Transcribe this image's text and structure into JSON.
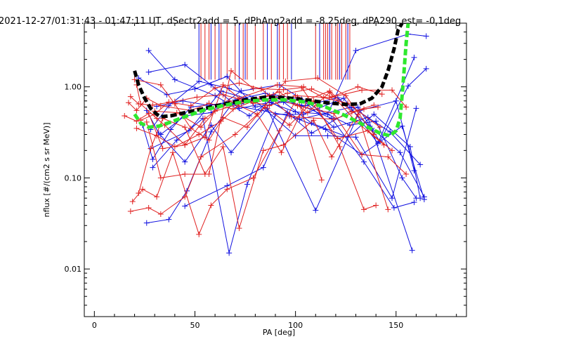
{
  "chart_data": {
    "type": "line",
    "title": "2021-12-27/01:31:43 - 01:47:11 UT, dSectr2add = 5, dPhAng2add = -8.25deg, dPA290_est=  -0.1deg",
    "xlabel": "PA [deg]",
    "ylabel": "nflux [#/(cm2 s sr MeV)]",
    "xlim": [
      -5,
      185
    ],
    "ylim": [
      0.003,
      5.0
    ],
    "yscale": "log",
    "x_ticks": [
      0,
      50,
      100,
      150
    ],
    "x_tick_labels": [
      "0",
      "50",
      "100",
      "150"
    ],
    "y_ticks": [
      0.01,
      0.1,
      1.0
    ],
    "y_tick_labels": [
      "0.01",
      "0.10",
      "1.00"
    ],
    "grid": false,
    "colors": {
      "red": "#e02020",
      "blue": "#1010e0",
      "green": "#2ee82e",
      "black": "#000000"
    },
    "fits": [
      {
        "color": "black",
        "x": [
          20,
          22,
          25,
          28,
          31,
          33,
          38,
          45,
          55,
          65,
          75,
          85,
          95,
          105,
          115,
          125,
          132,
          138,
          143,
          146,
          149,
          151,
          153
        ],
        "y": [
          1.5,
          1.05,
          0.75,
          0.58,
          0.5,
          0.47,
          0.48,
          0.52,
          0.58,
          0.65,
          0.72,
          0.77,
          0.76,
          0.72,
          0.67,
          0.64,
          0.65,
          0.75,
          1.0,
          1.5,
          2.6,
          4.2,
          5.0
        ]
      },
      {
        "color": "green",
        "x": [
          20,
          23,
          27,
          32,
          38,
          45,
          55,
          65,
          75,
          85,
          95,
          105,
          115,
          125,
          135,
          142,
          147,
          150,
          152,
          153,
          154,
          155,
          156
        ],
        "y": [
          0.5,
          0.4,
          0.36,
          0.37,
          0.41,
          0.47,
          0.56,
          0.63,
          0.69,
          0.72,
          0.72,
          0.68,
          0.6,
          0.48,
          0.37,
          0.31,
          0.29,
          0.33,
          0.45,
          0.8,
          1.5,
          3.0,
          5.0
        ]
      }
    ],
    "red_sector_lines_x": [
      53,
      55,
      57,
      60,
      63,
      66,
      70,
      74,
      76,
      80,
      84,
      88,
      92,
      94,
      96,
      110,
      112,
      114,
      115,
      116,
      118,
      120,
      121,
      123,
      125,
      127
    ],
    "blue_sector_lines_x": [
      52,
      58,
      62,
      72,
      75,
      86,
      91,
      98,
      112,
      117,
      122,
      126
    ],
    "series": [
      {
        "color": "blue",
        "points": [
          [
            27,
            2.5
          ],
          [
            40,
            1.2
          ],
          [
            60,
            0.8
          ],
          [
            77,
            0.48
          ],
          [
            88,
            0.72
          ],
          [
            105,
            0.62
          ],
          [
            121,
            0.76
          ],
          [
            138,
            0.35
          ],
          [
            152,
            0.19
          ],
          [
            164,
            0.062
          ]
        ]
      },
      {
        "color": "blue",
        "points": [
          [
            27,
            1.45
          ],
          [
            45,
            1.75
          ],
          [
            58,
            1.05
          ],
          [
            72,
            0.58
          ],
          [
            88,
            0.68
          ],
          [
            102,
            0.44
          ],
          [
            128,
            0.6
          ],
          [
            147,
            0.32
          ],
          [
            162,
            0.14
          ]
        ]
      },
      {
        "color": "blue",
        "points": [
          [
            22,
            1.25
          ],
          [
            36,
            0.82
          ],
          [
            50,
            0.95
          ],
          [
            66,
            1.3
          ],
          [
            80,
            0.6
          ],
          [
            94,
            0.68
          ],
          [
            108,
            0.4
          ],
          [
            126,
            0.28
          ],
          [
            139,
            0.5
          ],
          [
            157,
            0.22
          ],
          [
            162,
            0.06
          ]
        ]
      },
      {
        "color": "blue",
        "points": [
          [
            28,
            0.34
          ],
          [
            37,
            0.62
          ],
          [
            52,
            1.15
          ],
          [
            67,
            0.96
          ],
          [
            85,
            0.7
          ],
          [
            100,
            0.53
          ],
          [
            116,
            0.5
          ],
          [
            130,
            2.5
          ],
          [
            156,
            3.8
          ],
          [
            165,
            3.6
          ]
        ]
      },
      {
        "color": "blue",
        "points": [
          [
            33,
            0.3
          ],
          [
            45,
            0.48
          ],
          [
            58,
            0.52
          ],
          [
            73,
            0.9
          ],
          [
            92,
            1.05
          ],
          [
            112,
            0.55
          ],
          [
            127,
            0.38
          ],
          [
            140,
            0.42
          ],
          [
            153,
            0.1
          ],
          [
            160,
            0.06
          ]
        ]
      },
      {
        "color": "blue",
        "points": [
          [
            24,
            0.38
          ],
          [
            29,
            0.16
          ],
          [
            38,
            0.34
          ],
          [
            48,
            0.6
          ],
          [
            64,
            0.66
          ],
          [
            83,
            0.55
          ],
          [
            97,
            0.48
          ],
          [
            115,
            0.34
          ],
          [
            133,
            0.18
          ],
          [
            153,
            0.37
          ],
          [
            164,
            0.058
          ]
        ]
      },
      {
        "color": "blue",
        "points": [
          [
            26,
            0.032
          ],
          [
            37,
            0.035
          ],
          [
            46,
            0.072
          ],
          [
            58,
            0.32
          ],
          [
            70,
            0.72
          ],
          [
            85,
            0.85
          ],
          [
            103,
            0.62
          ],
          [
            118,
            0.45
          ],
          [
            134,
            0.15
          ],
          [
            149,
            0.047
          ],
          [
            159,
            0.054
          ]
        ]
      },
      {
        "color": "blue",
        "points": [
          [
            45,
            0.049
          ],
          [
            66,
            0.082
          ],
          [
            84,
            0.13
          ],
          [
            96,
            0.52
          ],
          [
            108,
            0.31
          ],
          [
            131,
            0.6
          ],
          [
            142,
            0.25
          ],
          [
            156,
            1.02
          ],
          [
            165,
            1.58
          ]
        ]
      },
      {
        "color": "blue",
        "points": [
          [
            26,
            0.55
          ],
          [
            32,
            0.31
          ],
          [
            45,
            0.15
          ],
          [
            58,
            0.38
          ],
          [
            68,
            0.19
          ],
          [
            86,
            0.58
          ],
          [
            110,
            0.044
          ],
          [
            132,
            0.55
          ],
          [
            150,
            0.7
          ],
          [
            159,
            0.12
          ]
        ]
      },
      {
        "color": "blue",
        "points": [
          [
            29,
            0.13
          ],
          [
            41,
            0.26
          ],
          [
            54,
            0.45
          ],
          [
            67,
            0.015
          ],
          [
            76,
            0.085
          ],
          [
            90,
            0.5
          ],
          [
            104,
            0.5
          ],
          [
            124,
            0.75
          ],
          [
            141,
            0.24
          ],
          [
            159,
            2.1
          ]
        ]
      },
      {
        "color": "blue",
        "points": [
          [
            31,
            0.61
          ],
          [
            44,
            0.7
          ],
          [
            56,
            0.63
          ],
          [
            73,
            0.65
          ],
          [
            89,
            0.82
          ],
          [
            103,
            0.73
          ],
          [
            119,
            0.36
          ],
          [
            136,
            0.46
          ],
          [
            158,
            0.016
          ]
        ]
      },
      {
        "color": "blue",
        "points": [
          [
            28,
            0.21
          ],
          [
            47,
            0.33
          ],
          [
            63,
            0.9
          ],
          [
            80,
            0.7
          ],
          [
            100,
            0.29
          ],
          [
            116,
            0.29
          ],
          [
            130,
            0.28
          ],
          [
            148,
            0.06
          ],
          [
            160,
            0.58
          ]
        ]
      },
      {
        "color": "red",
        "points": [
          [
            15,
            0.48
          ],
          [
            21,
            0.42
          ],
          [
            27,
            0.51
          ],
          [
            34,
            0.21
          ],
          [
            45,
            0.23
          ],
          [
            55,
            0.28
          ],
          [
            64,
            1.05
          ],
          [
            72,
            0.75
          ],
          [
            91,
            1.05
          ],
          [
            104,
            1.0
          ],
          [
            114,
            0.76
          ],
          [
            126,
            0.66
          ],
          [
            142,
            0.36
          ]
        ]
      },
      {
        "color": "red",
        "points": [
          [
            17,
            0.67
          ],
          [
            21,
            0.55
          ],
          [
            26,
            0.75
          ],
          [
            33,
            0.62
          ],
          [
            48,
            0.55
          ],
          [
            57,
            0.66
          ],
          [
            69,
            0.57
          ],
          [
            82,
            0.74
          ],
          [
            92,
            0.88
          ],
          [
            106,
            0.52
          ],
          [
            117,
            0.87
          ],
          [
            130,
            0.42
          ],
          [
            144,
            0.23
          ]
        ]
      },
      {
        "color": "red",
        "points": [
          [
            18,
            0.78
          ],
          [
            22,
            0.65
          ],
          [
            29,
            0.63
          ],
          [
            40,
            0.69
          ],
          [
            51,
            0.77
          ],
          [
            64,
            0.82
          ],
          [
            79,
            0.66
          ],
          [
            96,
            0.85
          ],
          [
            108,
            0.95
          ],
          [
            118,
            0.77
          ],
          [
            133,
            0.92
          ],
          [
            148,
            0.92
          ],
          [
            155,
            0.6
          ]
        ]
      },
      {
        "color": "red",
        "points": [
          [
            19,
            0.055
          ],
          [
            24,
            0.075
          ],
          [
            31,
            0.062
          ],
          [
            39,
            0.19
          ],
          [
            52,
            0.024
          ],
          [
            58,
            0.05
          ],
          [
            66,
            0.075
          ],
          [
            79,
            0.1
          ],
          [
            92,
            0.33
          ],
          [
            101,
            0.77
          ],
          [
            113,
            0.095
          ]
        ]
      },
      {
        "color": "red",
        "points": [
          [
            18,
            0.043
          ],
          [
            27,
            0.047
          ],
          [
            33,
            0.04
          ],
          [
            45,
            0.062
          ],
          [
            53,
            0.17
          ],
          [
            70,
            0.3
          ],
          [
            85,
            0.6
          ],
          [
            97,
            0.38
          ],
          [
            109,
            0.7
          ],
          [
            122,
            0.22
          ],
          [
            134,
            0.045
          ],
          [
            140,
            0.05
          ]
        ]
      },
      {
        "color": "red",
        "points": [
          [
            21,
            1.05
          ],
          [
            23,
            0.65
          ],
          [
            31,
            0.45
          ],
          [
            35,
            0.38
          ],
          [
            45,
            0.23
          ],
          [
            55,
            0.45
          ],
          [
            67,
            0.7
          ],
          [
            81,
            0.5
          ],
          [
            93,
            0.19
          ],
          [
            106,
            0.72
          ],
          [
            117,
            0.9
          ],
          [
            128,
            0.53
          ],
          [
            139,
            0.63
          ]
        ]
      },
      {
        "color": "red",
        "points": [
          [
            22,
            0.068
          ],
          [
            28,
            0.21
          ],
          [
            34,
            0.45
          ],
          [
            45,
            0.36
          ],
          [
            55,
            0.11
          ],
          [
            64,
            0.22
          ],
          [
            72,
            0.028
          ],
          [
            84,
            0.2
          ],
          [
            94,
            0.23
          ],
          [
            109,
            0.43
          ],
          [
            118,
            0.17
          ],
          [
            131,
            0.5
          ],
          [
            146,
            0.045
          ]
        ]
      },
      {
        "color": "red",
        "points": [
          [
            20,
            1.2
          ],
          [
            33,
            1.05
          ],
          [
            40,
            0.65
          ],
          [
            48,
            0.35
          ],
          [
            57,
            0.26
          ],
          [
            64,
            0.46
          ],
          [
            76,
            0.36
          ],
          [
            95,
            1.15
          ],
          [
            111,
            1.25
          ],
          [
            125,
            0.8
          ],
          [
            139,
            0.3
          ]
        ]
      },
      {
        "color": "red",
        "points": [
          [
            23,
            0.43
          ],
          [
            30,
            0.5
          ],
          [
            37,
            0.68
          ],
          [
            48,
            0.62
          ],
          [
            60,
            0.97
          ],
          [
            72,
            1.1
          ],
          [
            83,
            0.95
          ],
          [
            98,
            0.47
          ],
          [
            119,
            0.44
          ],
          [
            134,
            0.57
          ],
          [
            141,
            0.6
          ]
        ]
      },
      {
        "color": "red",
        "points": [
          [
            21,
            0.35
          ],
          [
            31,
            0.29
          ],
          [
            40,
            0.22
          ],
          [
            52,
            0.3
          ],
          [
            63,
            0.42
          ],
          [
            74,
            0.71
          ],
          [
            87,
            0.62
          ],
          [
            100,
            0.8
          ],
          [
            117,
            0.76
          ],
          [
            131,
            1.0
          ],
          [
            143,
            0.83
          ]
        ]
      },
      {
        "color": "red",
        "points": [
          [
            26,
            0.41
          ],
          [
            33,
            0.1
          ],
          [
            45,
            0.11
          ],
          [
            57,
            0.11
          ],
          [
            68,
            1.5
          ],
          [
            79,
            0.96
          ],
          [
            94,
            0.93
          ],
          [
            103,
            0.98
          ],
          [
            121,
            0.27
          ],
          [
            136,
            0.33
          ],
          [
            148,
            0.2
          ]
        ]
      },
      {
        "color": "red",
        "points": [
          [
            30,
            0.54
          ],
          [
            41,
            0.52
          ],
          [
            53,
            0.36
          ],
          [
            60,
            0.54
          ],
          [
            72,
            0.65
          ],
          [
            87,
            0.8
          ],
          [
            101,
            0.62
          ],
          [
            119,
            0.51
          ],
          [
            133,
            0.18
          ],
          [
            146,
            0.17
          ],
          [
            155,
            0.11
          ]
        ]
      }
    ]
  }
}
